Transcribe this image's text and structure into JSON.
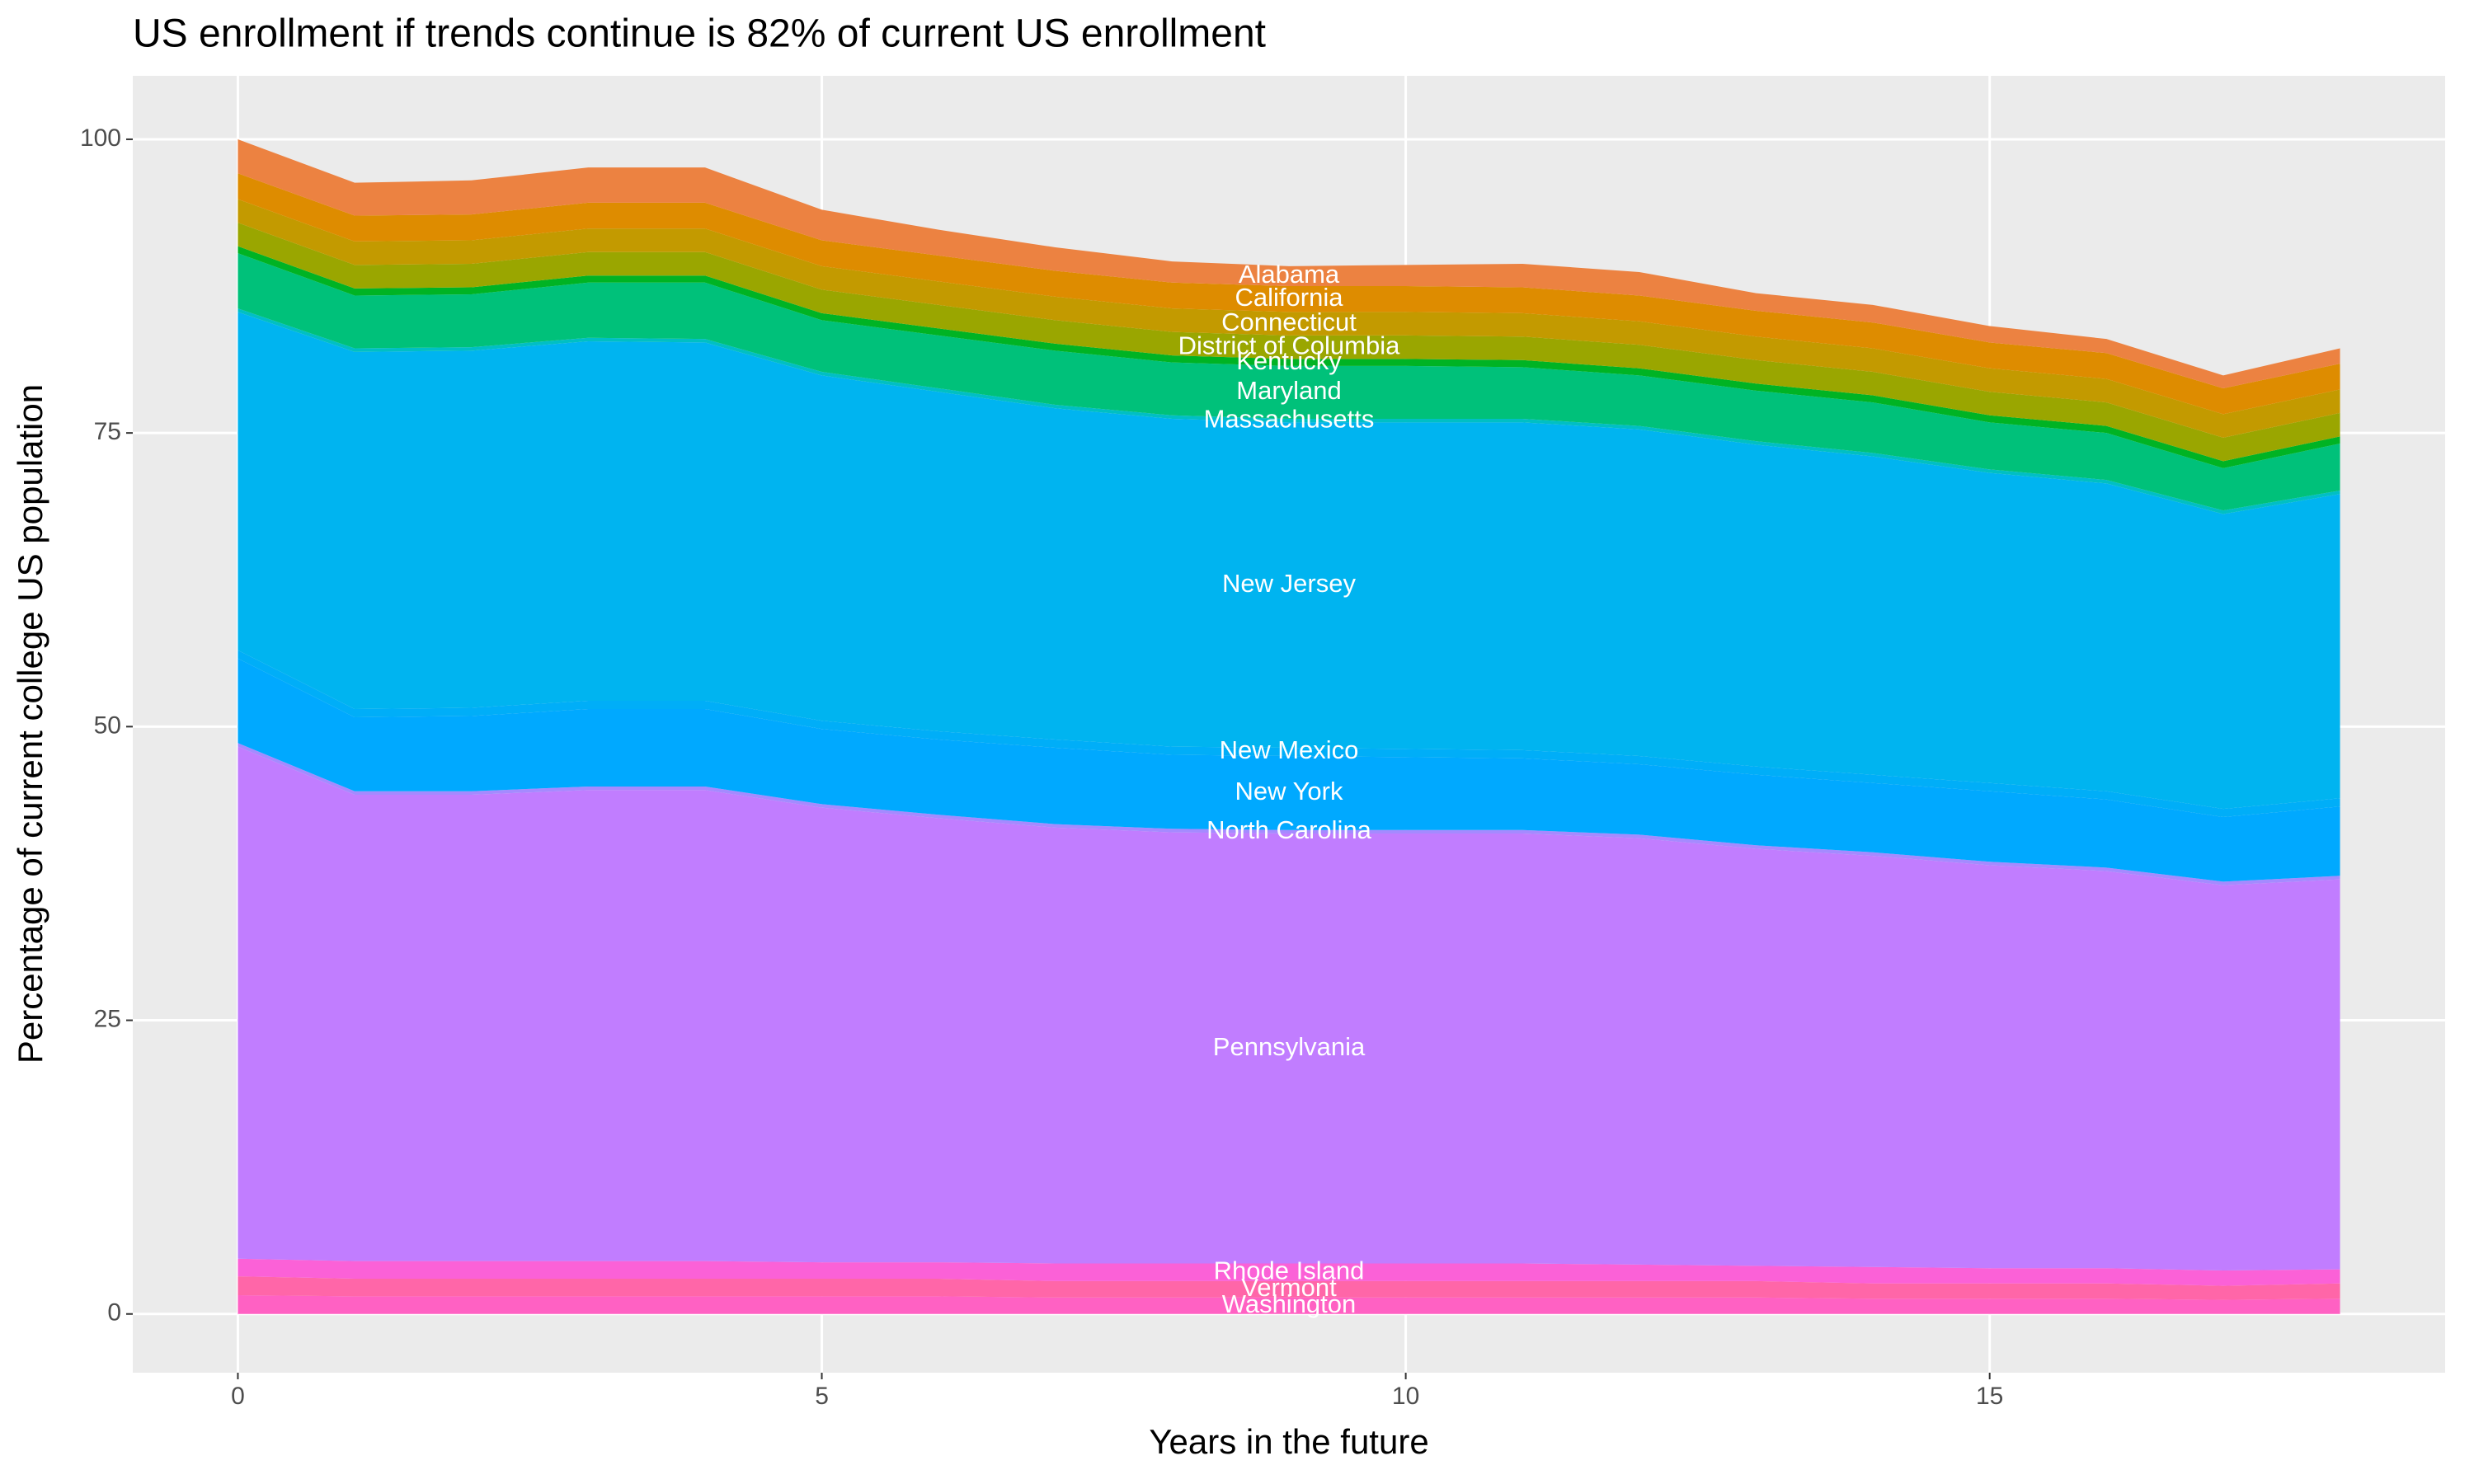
{
  "chart_data": {
    "type": "stacked-area",
    "title": "US enrollment if trends continue is 82% of current US enrollment",
    "xlabel": "Years in the future",
    "ylabel": "Percentage of current college US population",
    "x": [
      0,
      1,
      2,
      3,
      4,
      5,
      6,
      7,
      8,
      9,
      10,
      11,
      12,
      13,
      14,
      15,
      16,
      17,
      18
    ],
    "xlim": [
      -0.9,
      18.9
    ],
    "xticks": [
      0,
      5,
      10,
      15
    ],
    "ylim": [
      -5,
      105.4
    ],
    "yticks": [
      0,
      25,
      50,
      75,
      100
    ],
    "grid": true,
    "series": [
      {
        "name": "Washington",
        "color": "#FF61C3",
        "values": [
          1.6,
          1.5,
          1.5,
          1.5,
          1.5,
          1.5,
          1.5,
          1.4,
          1.4,
          1.4,
          1.4,
          1.4,
          1.4,
          1.4,
          1.3,
          1.3,
          1.3,
          1.2,
          1.3
        ]
      },
      {
        "name": "Vermont",
        "color": "#FF66A8",
        "values": [
          1.6,
          1.5,
          1.5,
          1.5,
          1.5,
          1.5,
          1.5,
          1.4,
          1.4,
          1.4,
          1.4,
          1.4,
          1.4,
          1.4,
          1.3,
          1.3,
          1.3,
          1.2,
          1.3
        ]
      },
      {
        "name": "Rhode Island",
        "color": "#FB61D7",
        "values": [
          1.5,
          1.5,
          1.5,
          1.5,
          1.5,
          1.4,
          1.4,
          1.5,
          1.5,
          1.5,
          1.5,
          1.5,
          1.4,
          1.3,
          1.4,
          1.3,
          1.3,
          1.3,
          1.2
        ]
      },
      {
        "name": "Pennsylvania",
        "color": "#C17DFF",
        "values": [
          43.6,
          39.7,
          39.7,
          40.1,
          40.1,
          38.7,
          37.8,
          37.1,
          36.7,
          36.6,
          36.6,
          36.6,
          36.3,
          35.5,
          35,
          34.3,
          33.8,
          32.8,
          33.2
        ]
      },
      {
        "name": "North Carolina",
        "color": "#A58AFF",
        "values": [
          0.3,
          0.3,
          0.3,
          0.3,
          0.3,
          0.3,
          0.3,
          0.3,
          0.3,
          0.3,
          0.3,
          0.3,
          0.3,
          0.3,
          0.3,
          0.3,
          0.3,
          0.3,
          0.3
        ]
      },
      {
        "name": "New York",
        "color": "#00A9FF",
        "values": [
          7.2,
          6.3,
          6.4,
          6.6,
          6.6,
          6.4,
          6.4,
          6.5,
          6.3,
          6.3,
          6.2,
          6.1,
          6,
          6,
          5.9,
          6,
          5.8,
          5.5,
          5.9
        ]
      },
      {
        "name": "New Mexico",
        "color": "#00AEF8",
        "values": [
          0.7,
          0.7,
          0.7,
          0.7,
          0.7,
          0.7,
          0.7,
          0.7,
          0.7,
          0.7,
          0.7,
          0.7,
          0.7,
          0.7,
          0.7,
          0.7,
          0.7,
          0.7,
          0.7
        ]
      },
      {
        "name": "New Jersey",
        "color": "#00B4F0",
        "values": [
          28.8,
          30.4,
          30.4,
          30.6,
          30.5,
          29.4,
          28.9,
          28.2,
          27.9,
          27.7,
          27.8,
          27.9,
          27.8,
          27.4,
          27.1,
          26.4,
          26.2,
          25.1,
          25.9
        ]
      },
      {
        "name": "Massachusetts",
        "color": "#00BFC4",
        "values": [
          0.3,
          0.3,
          0.3,
          0.3,
          0.3,
          0.3,
          0.3,
          0.3,
          0.3,
          0.3,
          0.3,
          0.3,
          0.3,
          0.3,
          0.3,
          0.3,
          0.3,
          0.3,
          0.3
        ]
      },
      {
        "name": "Maryland",
        "color": "#00C17A",
        "values": [
          4.7,
          4.5,
          4.5,
          4.7,
          4.8,
          4.4,
          4.5,
          4.6,
          4.5,
          4.5,
          4.5,
          4.4,
          4.3,
          4.3,
          4.3,
          4,
          4,
          3.6,
          4
        ]
      },
      {
        "name": "Kentucky",
        "color": "#00B324",
        "values": [
          0.6,
          0.6,
          0.6,
          0.6,
          0.6,
          0.6,
          0.6,
          0.6,
          0.6,
          0.6,
          0.6,
          0.6,
          0.6,
          0.6,
          0.6,
          0.6,
          0.6,
          0.6,
          0.6
        ]
      },
      {
        "name": "District of Columbia",
        "color": "#9AA600",
        "values": [
          2,
          2,
          2,
          2,
          2,
          2,
          2,
          2,
          2,
          2,
          2,
          2,
          2,
          2,
          2,
          2,
          2,
          2,
          2
        ]
      },
      {
        "name": "Connecticut",
        "color": "#C39A00",
        "values": [
          2,
          2,
          2,
          2,
          2,
          2,
          2,
          2,
          2,
          2,
          2,
          2,
          2,
          2,
          2,
          2,
          2,
          2,
          2
        ]
      },
      {
        "name": "California",
        "color": "#DE8C00",
        "values": [
          2.2,
          2.2,
          2.2,
          2.2,
          2.2,
          2.2,
          2.2,
          2.2,
          2.2,
          2.2,
          2.2,
          2.2,
          2.2,
          2.2,
          2.2,
          2.2,
          2.2,
          2.2,
          2.2
        ]
      },
      {
        "name": "Alabama",
        "color": "#EC8241",
        "values": [
          2.9,
          2.8,
          2.9,
          3,
          3,
          2.6,
          2.2,
          2,
          1.8,
          1.7,
          1.8,
          2,
          2,
          1.5,
          1.5,
          1.4,
          1.2,
          1.1,
          1.3
        ]
      }
    ]
  }
}
